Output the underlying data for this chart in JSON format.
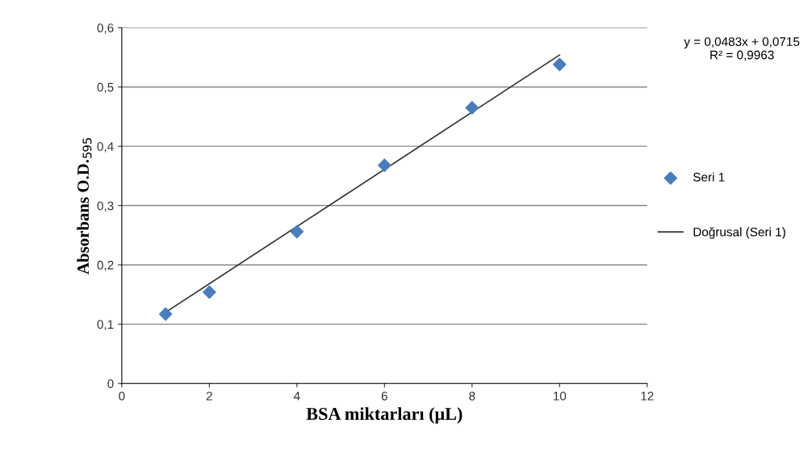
{
  "chart_data": {
    "type": "scatter",
    "xlabel": "BSA miktarları (μL)",
    "ylabel": "Absorbans O.D.$_{595}$",
    "series": [
      {
        "name": "Seri 1",
        "color": "#4a7ebb",
        "marker": "diamond",
        "x": [
          1,
          2,
          4,
          6,
          8,
          10
        ],
        "values": [
          0.117,
          0.154,
          0.256,
          0.368,
          0.465,
          0.538
        ]
      },
      {
        "name": "Doğrusal (Seri 1)",
        "type": "line",
        "color": "#333333",
        "marker": "none",
        "line_style": "solid",
        "x": [
          1,
          10
        ],
        "values": [
          0.12,
          0.554
        ]
      }
    ],
    "xlim": [
      0,
      12
    ],
    "ylim": [
      0,
      0.6
    ],
    "xticks": [
      0,
      2,
      4,
      6,
      8,
      10,
      12
    ],
    "yticks": [
      0,
      {
        "value": 0.1,
        "label": "0,1"
      },
      {
        "value": 0.2,
        "label": "0,2"
      },
      {
        "value": 0.3,
        "label": "0,3"
      },
      {
        "value": 0.4,
        "label": "0,4"
      },
      {
        "value": 0.5,
        "label": "0,5"
      },
      {
        "value": 0.6,
        "label": "0,6"
      }
    ],
    "grid": "y",
    "legend": "right",
    "annotations": [
      "y = 0,0483x + 0,0715\nR² = 0,9963"
    ]
  }
}
